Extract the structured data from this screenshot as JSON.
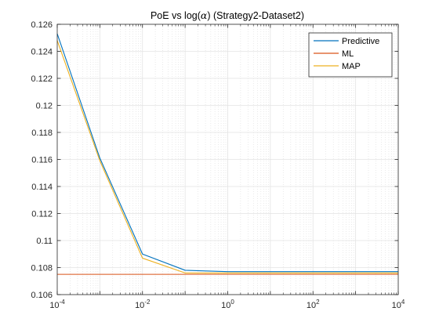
{
  "chart_data": {
    "type": "line",
    "title": "PoE vs log(α) (Strategy2-Dataset2)",
    "xlabel": "",
    "ylabel": "",
    "x_scale": "log",
    "x": [
      0.0001,
      0.001,
      0.01,
      0.1,
      1,
      10,
      100,
      1000,
      10000
    ],
    "xlim": [
      0.0001,
      10000
    ],
    "ylim": [
      0.106,
      0.126
    ],
    "x_ticks": [
      {
        "value": 0.0001,
        "base": "10",
        "exp": "-4"
      },
      {
        "value": 0.01,
        "base": "10",
        "exp": "-2"
      },
      {
        "value": 1,
        "base": "10",
        "exp": "0"
      },
      {
        "value": 100,
        "base": "10",
        "exp": "2"
      },
      {
        "value": 10000,
        "base": "10",
        "exp": "4"
      }
    ],
    "y_ticks": [
      {
        "value": 0.106,
        "label": "0.106"
      },
      {
        "value": 0.108,
        "label": "0.108"
      },
      {
        "value": 0.11,
        "label": "0.11"
      },
      {
        "value": 0.112,
        "label": "0.112"
      },
      {
        "value": 0.114,
        "label": "0.114"
      },
      {
        "value": 0.116,
        "label": "0.116"
      },
      {
        "value": 0.118,
        "label": "0.118"
      },
      {
        "value": 0.12,
        "label": "0.12"
      },
      {
        "value": 0.122,
        "label": "0.122"
      },
      {
        "value": 0.124,
        "label": "0.124"
      },
      {
        "value": 0.126,
        "label": "0.126"
      }
    ],
    "grid": true,
    "minor_grid": true,
    "legend_position": "top-right",
    "series": [
      {
        "name": "Predictive",
        "color": "#0072BD",
        "values": [
          0.1253,
          0.1161,
          0.109,
          0.1078,
          0.1077,
          0.1077,
          0.1077,
          0.1077,
          0.1077
        ]
      },
      {
        "name": "ML",
        "color": "#D95319",
        "values": [
          0.1075,
          0.1075,
          0.1075,
          0.1075,
          0.1075,
          0.1075,
          0.1075,
          0.1075,
          0.1075
        ]
      },
      {
        "name": "MAP",
        "color": "#EDB120",
        "values": [
          0.1248,
          0.1159,
          0.1087,
          0.1076,
          0.1076,
          0.1076,
          0.1076,
          0.1076,
          0.1076
        ]
      }
    ]
  }
}
